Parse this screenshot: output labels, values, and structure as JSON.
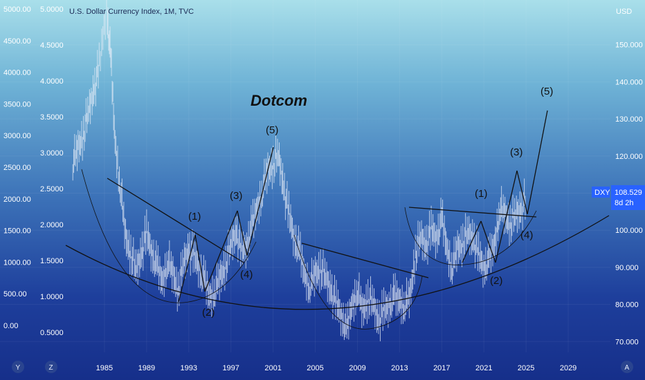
{
  "header": {
    "symbol_title": "U.S. Dollar Currency Index, 1M, TVC",
    "currency": "USD"
  },
  "price_label": {
    "ticker": "DXY",
    "price": "108.529",
    "countdown": "8d 2h",
    "color": "#2962ff"
  },
  "bottom_controls": {
    "left_1": "Y",
    "left_2": "Z",
    "right": "A"
  },
  "chart_data": {
    "type": "line",
    "title": "U.S. Dollar Currency Index, 1M, TVC",
    "x_ticks": [
      "1985",
      "1989",
      "1993",
      "1997",
      "2001",
      "2005",
      "2009",
      "2013",
      "2017",
      "2021",
      "2025",
      "2029"
    ],
    "y_left_outer_ticks": [
      "5000.00",
      "4500.00",
      "4000.00",
      "3500.00",
      "3000.00",
      "2500.00",
      "2000.00",
      "1500.00",
      "1000.00",
      "500.00",
      "0.00"
    ],
    "y_left_inner_ticks": [
      "5.0000",
      "4.5000",
      "4.0000",
      "3.5000",
      "3.0000",
      "2.5000",
      "2.0000",
      "1.5000",
      "1.0000",
      "0.5000"
    ],
    "y_right_ticks": [
      "150.000",
      "140.000",
      "130.000",
      "120.000",
      "110.000",
      "100.000",
      "90.000",
      "80.000",
      "70.000"
    ],
    "y_right_range": [
      65,
      160
    ],
    "x_range": [
      1981,
      2033
    ],
    "series": [
      {
        "x": [
          1982.0,
          1982.5,
          1983.0,
          1983.5,
          1984.0,
          1984.5,
          1985.2,
          1985.6,
          1986.0,
          1986.5,
          1987.0,
          1987.5,
          1988.0,
          1988.5,
          1989.0,
          1989.5,
          1990.0,
          1990.5,
          1991.0,
          1991.5,
          1992.0,
          1992.5,
          1993.0,
          1993.5,
          1994.0,
          1994.5,
          1995.0,
          1995.5,
          1996.0,
          1996.5,
          1997.0,
          1997.5,
          1998.0,
          1998.5,
          1999.0,
          1999.5,
          2000.0,
          2000.5,
          2001.0,
          2001.5,
          2002.0,
          2002.5,
          2003.0,
          2003.5,
          2004.0,
          2004.5,
          2005.0,
          2005.5,
          2006.0,
          2006.5,
          2007.0,
          2007.5,
          2008.0,
          2008.5,
          2009.0,
          2009.5,
          2010.0,
          2010.5,
          2011.0,
          2011.5,
          2012.0,
          2012.5,
          2013.0,
          2013.5,
          2014.0,
          2014.5,
          2015.0,
          2015.5,
          2016.0,
          2016.5,
          2017.0,
          2017.5,
          2018.0,
          2018.5,
          2019.0,
          2019.5,
          2020.0,
          2020.5,
          2021.0,
          2021.5,
          2022.0,
          2022.5,
          2023.0,
          2023.5,
          2024.0,
          2024.5,
          2025.0
        ],
        "values": [
          118,
          122,
          126,
          132,
          138,
          144,
          160,
          146,
          124,
          112,
          98,
          94,
          89,
          94,
          99,
          94,
          90,
          86,
          92,
          88,
          84,
          91,
          95,
          93,
          90,
          86,
          82,
          84,
          87,
          91,
          96,
          100,
          94,
          96,
          101,
          106,
          111,
          116,
          118,
          120,
          112,
          104,
          98,
          94,
          88,
          85,
          88,
          90,
          87,
          84,
          80,
          77,
          73,
          80,
          84,
          78,
          82,
          80,
          76,
          78,
          80,
          82,
          81,
          80,
          82,
          94,
          98,
          96,
          100,
          98,
          103,
          95,
          90,
          95,
          97,
          99,
          98,
          93,
          90,
          92,
          96,
          106,
          104,
          102,
          104,
          106,
          108
        ]
      }
    ],
    "annotations": [
      "Dotcom",
      "(1)",
      "(2)",
      "(3)",
      "(4)",
      "(5)"
    ],
    "grid": true,
    "legend": "none"
  }
}
